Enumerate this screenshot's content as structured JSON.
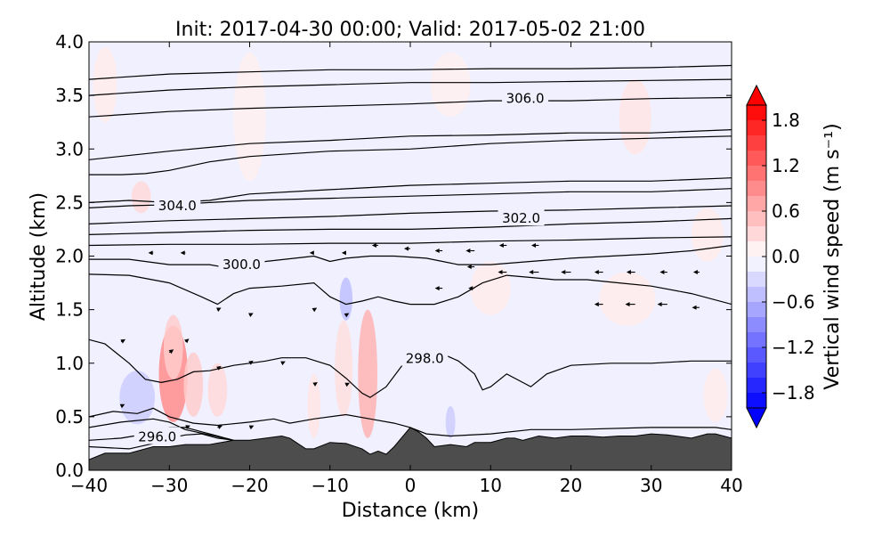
{
  "chart_data": {
    "type": "contour",
    "title": "Init: 2017-04-30 00:00; Valid: 2017-05-02 21:00",
    "xlabel": "Distance (km)",
    "ylabel": "Altitude (km)",
    "xlim": [
      -40,
      40
    ],
    "ylim": [
      0.0,
      4.0
    ],
    "x_ticks": [
      -40,
      -30,
      -20,
      -10,
      0,
      10,
      20,
      30,
      40
    ],
    "x_tick_labels": [
      "−40",
      "−30",
      "−20",
      "−10",
      "0",
      "10",
      "20",
      "30",
      "40"
    ],
    "y_ticks": [
      0.0,
      0.5,
      1.0,
      1.5,
      2.0,
      2.5,
      3.0,
      3.5,
      4.0
    ],
    "y_tick_labels": [
      "0.0",
      "0.5",
      "1.0",
      "1.5",
      "2.0",
      "2.5",
      "3.0",
      "3.5",
      "4.0"
    ],
    "colorbar": {
      "label": "Vertical wind speed (m s⁻¹)",
      "range": [
        -2.0,
        2.0
      ],
      "ticks": [
        -1.8,
        -1.2,
        -0.6,
        0.0,
        0.6,
        1.2,
        1.8
      ],
      "tick_labels": [
        "−1.8",
        "−1.2",
        "−0.6",
        "0.0",
        "0.6",
        "1.2",
        "1.8"
      ],
      "colormap": "bwr",
      "extend": "both"
    },
    "terrain": {
      "color": "#4d4d4d",
      "x": [
        -40,
        -38,
        -35,
        -32,
        -30,
        -28,
        -25,
        -22,
        -20,
        -18,
        -16,
        -15,
        -14,
        -13,
        -12,
        -10,
        -8,
        -6,
        -5,
        -4,
        -3,
        -2,
        0,
        1,
        2,
        3,
        5,
        7,
        8,
        10,
        12,
        13,
        14,
        16,
        18,
        20,
        22,
        24,
        26,
        28,
        30,
        32,
        35,
        37,
        38,
        40
      ],
      "y": [
        0.1,
        0.16,
        0.16,
        0.22,
        0.22,
        0.24,
        0.24,
        0.28,
        0.28,
        0.3,
        0.32,
        0.3,
        0.25,
        0.2,
        0.2,
        0.26,
        0.25,
        0.2,
        0.15,
        0.18,
        0.15,
        0.22,
        0.4,
        0.36,
        0.3,
        0.22,
        0.24,
        0.22,
        0.26,
        0.26,
        0.3,
        0.3,
        0.28,
        0.32,
        0.3,
        0.32,
        0.32,
        0.31,
        0.32,
        0.32,
        0.34,
        0.33,
        0.3,
        0.34,
        0.34,
        0.3
      ]
    },
    "theta_contours": [
      {
        "level": "296.0",
        "x": [
          -40,
          -35,
          -32,
          -30,
          -28,
          -26,
          -24,
          -22
        ],
        "y": [
          0.22,
          0.2,
          0.25,
          0.3,
          0.33,
          0.34,
          0.3,
          0.28
        ],
        "label_at": [
          -31.5,
          0.32
        ]
      },
      {
        "level": "",
        "x": [
          -40,
          -36,
          -32,
          -30,
          -28,
          -26,
          -24,
          -22
        ],
        "y": [
          0.28,
          0.3,
          0.35,
          0.4,
          0.4,
          0.36,
          0.32,
          0.28
        ]
      },
      {
        "level": "",
        "x": [
          -40,
          -36,
          -32,
          -30,
          -28,
          -25,
          -22
        ],
        "y": [
          0.4,
          0.45,
          0.48,
          0.45,
          0.38,
          0.33,
          0.28
        ]
      },
      {
        "level": "",
        "x": [
          -40,
          -37,
          -34,
          -32,
          -30,
          -27,
          -24,
          -20,
          -17,
          -15,
          -12,
          -8,
          -5,
          -2,
          0,
          2,
          5,
          10,
          15,
          20,
          30,
          38,
          40
        ],
        "y": [
          0.5,
          0.55,
          0.53,
          0.58,
          0.5,
          0.44,
          0.42,
          0.45,
          0.48,
          0.44,
          0.48,
          0.52,
          0.48,
          0.44,
          0.4,
          0.34,
          0.32,
          0.34,
          0.38,
          0.38,
          0.4,
          0.4,
          0.38
        ]
      },
      {
        "level": "298.0",
        "x": [
          -40,
          -38,
          -35,
          -33,
          -31,
          -29,
          -27,
          -25,
          -22,
          -20,
          -18,
          -16,
          -13,
          -10,
          -8,
          -6,
          -5,
          -3,
          0,
          3,
          6,
          8,
          9,
          10,
          12,
          14,
          15,
          17,
          20,
          25,
          30,
          35,
          40
        ],
        "y": [
          1.22,
          1.18,
          1.0,
          0.85,
          0.82,
          0.85,
          0.92,
          0.93,
          0.98,
          1.0,
          1.02,
          1.05,
          1.05,
          0.98,
          0.86,
          0.72,
          0.68,
          0.78,
          1.08,
          1.12,
          1.02,
          0.9,
          0.75,
          0.78,
          0.9,
          0.82,
          0.78,
          0.9,
          0.98,
          1.0,
          1.0,
          1.02,
          1.02
        ],
        "label_at": [
          1.8,
          1.05
        ]
      },
      {
        "level": "",
        "x": [
          -40,
          -35,
          -30,
          -26,
          -24,
          -22,
          -20,
          -16,
          -12,
          -10,
          -8,
          -6,
          -4,
          -2,
          0,
          3,
          6,
          9,
          12,
          15,
          18,
          22,
          26,
          30,
          35,
          40
        ],
        "y": [
          1.83,
          1.82,
          1.75,
          1.62,
          1.55,
          1.65,
          1.7,
          1.72,
          1.75,
          1.62,
          1.55,
          1.58,
          1.62,
          1.58,
          1.55,
          1.55,
          1.62,
          1.75,
          1.82,
          1.8,
          1.78,
          1.78,
          1.75,
          1.72,
          1.65,
          1.55
        ]
      },
      {
        "level": "300.0",
        "x": [
          -40,
          -35,
          -30,
          -25,
          -22,
          -18,
          -12,
          -10,
          -8,
          -5,
          -2,
          2,
          6,
          10,
          15,
          20,
          25,
          30,
          35,
          40
        ],
        "y": [
          1.97,
          1.97,
          1.92,
          1.92,
          1.88,
          1.95,
          2.0,
          1.95,
          1.98,
          2.0,
          2.0,
          1.98,
          1.92,
          1.92,
          1.95,
          1.98,
          2.0,
          2.02,
          2.05,
          2.1
        ],
        "label_at": [
          -21,
          1.93
        ]
      },
      {
        "level": "",
        "x": [
          -40,
          -30,
          -20,
          -10,
          0,
          10,
          20,
          30,
          40
        ],
        "y": [
          2.1,
          2.11,
          2.11,
          2.12,
          2.12,
          2.14,
          2.15,
          2.17,
          2.18
        ]
      },
      {
        "level": "302.0",
        "x": [
          -40,
          -30,
          -20,
          -10,
          0,
          10,
          20,
          30,
          40
        ],
        "y": [
          2.2,
          2.22,
          2.24,
          2.25,
          2.25,
          2.27,
          2.3,
          2.32,
          2.35
        ],
        "label_at": [
          13.8,
          2.36
        ]
      },
      {
        "level": "",
        "x": [
          -40,
          -30,
          -20,
          -10,
          0,
          10,
          20,
          30,
          40
        ],
        "y": [
          2.3,
          2.33,
          2.35,
          2.37,
          2.4,
          2.42,
          2.43,
          2.45,
          2.47
        ]
      },
      {
        "level": "",
        "x": [
          -40,
          -35,
          -30,
          -25,
          -20,
          -10,
          0,
          10,
          20,
          30,
          40
        ],
        "y": [
          2.45,
          2.47,
          2.48,
          2.5,
          2.52,
          2.54,
          2.56,
          2.58,
          2.6,
          2.6,
          2.63
        ]
      },
      {
        "level": "304.0",
        "x": [
          -40,
          -35,
          -30,
          -25,
          -20,
          -10,
          0,
          10,
          20,
          30,
          40
        ],
        "y": [
          2.5,
          2.52,
          2.5,
          2.52,
          2.58,
          2.62,
          2.66,
          2.68,
          2.7,
          2.7,
          2.73
        ],
        "label_at": [
          -29,
          2.48
        ]
      },
      {
        "level": "",
        "x": [
          -40,
          -36,
          -33,
          -30,
          -25,
          -20,
          -10,
          0,
          10,
          20,
          30,
          40
        ],
        "y": [
          2.76,
          2.76,
          2.77,
          2.8,
          2.88,
          2.93,
          2.98,
          3.0,
          3.05,
          3.08,
          3.1,
          3.12
        ]
      },
      {
        "level": "",
        "x": [
          -40,
          -30,
          -20,
          -10,
          0,
          10,
          20,
          30,
          40
        ],
        "y": [
          2.9,
          2.98,
          3.05,
          3.08,
          3.12,
          3.13,
          3.15,
          3.15,
          3.18
        ]
      },
      {
        "level": "306.0",
        "x": [
          -40,
          -30,
          -20,
          -10,
          0,
          10,
          20,
          30,
          40
        ],
        "y": [
          3.3,
          3.35,
          3.38,
          3.4,
          3.42,
          3.45,
          3.45,
          3.47,
          3.48
        ],
        "label_at": [
          14.3,
          3.48
        ]
      },
      {
        "level": "",
        "x": [
          -40,
          -30,
          -20,
          -10,
          0,
          10,
          20,
          30,
          40
        ],
        "y": [
          3.5,
          3.55,
          3.58,
          3.6,
          3.62,
          3.62,
          3.63,
          3.64,
          3.65
        ]
      },
      {
        "level": "",
        "x": [
          -40,
          -30,
          -20,
          -10,
          0,
          10,
          20,
          30,
          40
        ],
        "y": [
          3.65,
          3.7,
          3.72,
          3.74,
          3.74,
          3.75,
          3.75,
          3.76,
          3.78
        ]
      }
    ],
    "w_patches": [
      {
        "x": -29.5,
        "y": 0.9,
        "rx": 1.8,
        "ry": 0.45,
        "value": 0.9
      },
      {
        "x": -29.5,
        "y": 1.15,
        "rx": 1.2,
        "ry": 0.3,
        "value": 0.4
      },
      {
        "x": -27,
        "y": 0.8,
        "rx": 1.2,
        "ry": 0.3,
        "value": 0.4
      },
      {
        "x": -24,
        "y": 0.75,
        "rx": 1.2,
        "ry": 0.25,
        "value": 0.3
      },
      {
        "x": -34,
        "y": 0.68,
        "rx": 2.2,
        "ry": 0.25,
        "value": -0.4
      },
      {
        "x": -33.5,
        "y": 2.55,
        "rx": 1.2,
        "ry": 0.15,
        "value": 0.3
      },
      {
        "x": -38,
        "y": 3.6,
        "rx": 1.5,
        "ry": 0.35,
        "value": 0.15
      },
      {
        "x": -5.3,
        "y": 0.9,
        "rx": 1.2,
        "ry": 0.6,
        "value": 0.6
      },
      {
        "x": -8.3,
        "y": 0.95,
        "rx": 1.1,
        "ry": 0.45,
        "value": 0.25
      },
      {
        "x": -8.0,
        "y": 1.6,
        "rx": 0.8,
        "ry": 0.2,
        "value": -0.5
      },
      {
        "x": -12,
        "y": 0.6,
        "rx": 0.8,
        "ry": 0.3,
        "value": 0.2
      },
      {
        "x": 5,
        "y": 0.45,
        "rx": 0.6,
        "ry": 0.15,
        "value": -0.4
      },
      {
        "x": 10,
        "y": 1.7,
        "rx": 2.5,
        "ry": 0.25,
        "value": 0.15
      },
      {
        "x": 27,
        "y": 1.6,
        "rx": 3.5,
        "ry": 0.25,
        "value": 0.15
      },
      {
        "x": 28,
        "y": 3.3,
        "rx": 2.0,
        "ry": 0.35,
        "value": 0.2
      },
      {
        "x": 37,
        "y": 2.2,
        "rx": 2.0,
        "ry": 0.25,
        "value": 0.15
      },
      {
        "x": 38,
        "y": 0.7,
        "rx": 1.5,
        "ry": 0.25,
        "value": 0.15
      },
      {
        "x": -20,
        "y": 3.3,
        "rx": 2.0,
        "ry": 0.6,
        "value": 0.12
      },
      {
        "x": 5,
        "y": 3.6,
        "rx": 2.5,
        "ry": 0.3,
        "value": 0.12
      }
    ],
    "wind_vectors": [
      {
        "x": -4,
        "y": 2.1,
        "u": -1,
        "w": 0
      },
      {
        "x": 0,
        "y": 2.07,
        "u": -1,
        "w": 0
      },
      {
        "x": 4,
        "y": 2.05,
        "u": -1.2,
        "w": 0
      },
      {
        "x": 8,
        "y": 2.05,
        "u": -1.4,
        "w": 0
      },
      {
        "x": 12,
        "y": 2.1,
        "u": -1.2,
        "w": 0
      },
      {
        "x": 16,
        "y": 2.1,
        "u": -1.2,
        "w": 0
      },
      {
        "x": 8,
        "y": 1.9,
        "u": -1.2,
        "w": 0
      },
      {
        "x": 12,
        "y": 1.85,
        "u": -1.4,
        "w": 0
      },
      {
        "x": 16,
        "y": 1.85,
        "u": -1.6,
        "w": 0
      },
      {
        "x": 20,
        "y": 1.85,
        "u": -1.6,
        "w": 0
      },
      {
        "x": 24,
        "y": 1.85,
        "u": -1.4,
        "w": 0
      },
      {
        "x": 28,
        "y": 1.85,
        "u": -1.4,
        "w": 0
      },
      {
        "x": 32,
        "y": 1.85,
        "u": -1.2,
        "w": 0
      },
      {
        "x": 36,
        "y": 1.85,
        "u": -1.0,
        "w": 0
      },
      {
        "x": 4,
        "y": 1.7,
        "u": -1.2,
        "w": 0
      },
      {
        "x": 8,
        "y": 1.7,
        "u": -1.0,
        "w": 0
      },
      {
        "x": 24,
        "y": 1.55,
        "u": -1.4,
        "w": 0
      },
      {
        "x": 28,
        "y": 1.55,
        "u": -1.6,
        "w": 0
      },
      {
        "x": 32,
        "y": 1.55,
        "u": -1.6,
        "w": 0
      },
      {
        "x": 36,
        "y": 1.52,
        "u": -1.2,
        "w": 0
      },
      {
        "x": -32,
        "y": 2.03,
        "u": -0.8,
        "w": 0
      },
      {
        "x": -28,
        "y": 2.03,
        "u": -0.8,
        "w": 0
      },
      {
        "x": -12,
        "y": 2.03,
        "u": -0.7,
        "w": 0
      },
      {
        "x": -8,
        "y": 2.03,
        "u": -0.7,
        "w": 0
      },
      {
        "x": -36,
        "y": 1.2,
        "u": 0.7,
        "w": 0.4
      },
      {
        "x": -30,
        "y": 1.1,
        "u": 0.7,
        "w": 0.5
      },
      {
        "x": -28,
        "y": 1.2,
        "u": 0.6,
        "w": 0.5
      },
      {
        "x": -24,
        "y": 0.95,
        "u": 0.6,
        "w": 0.4
      },
      {
        "x": -20,
        "y": 1.0,
        "u": 0.6,
        "w": 0.4
      },
      {
        "x": -16,
        "y": 1.0,
        "u": 0.6,
        "w": 0.3
      },
      {
        "x": -12,
        "y": 0.8,
        "u": 0.6,
        "w": 0.4
      },
      {
        "x": -8,
        "y": 0.8,
        "u": 0.6,
        "w": 0.3
      },
      {
        "x": -28,
        "y": 0.4,
        "u": 0.8,
        "w": 0.3
      },
      {
        "x": -24,
        "y": 0.4,
        "u": 0.8,
        "w": 0.3
      },
      {
        "x": -20,
        "y": 0.4,
        "u": 0.7,
        "w": 0.3
      },
      {
        "x": -36,
        "y": 0.6,
        "u": 0.6,
        "w": 0.3
      },
      {
        "x": -12,
        "y": 1.5,
        "u": 0.5,
        "w": 0.3
      },
      {
        "x": -8,
        "y": 1.45,
        "u": 0.5,
        "w": 0.3
      },
      {
        "x": -24,
        "y": 1.5,
        "u": 0.6,
        "w": 0.3
      },
      {
        "x": -20,
        "y": 1.45,
        "u": 0.6,
        "w": 0.3
      }
    ]
  }
}
